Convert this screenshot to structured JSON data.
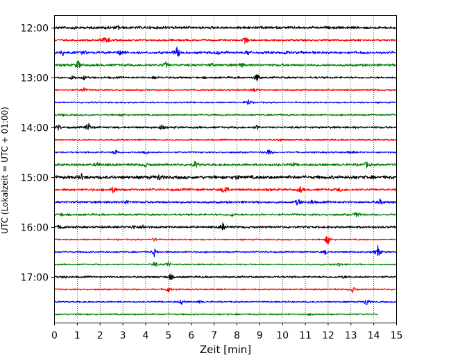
{
  "chart_data": {
    "type": "line",
    "title": "",
    "xlabel": "Zeit  [min]",
    "ylabel": "UTC (Lokalzeit = UTC + 01:00)",
    "xlim": [
      0,
      15
    ],
    "x_ticks": [
      0,
      1,
      2,
      3,
      4,
      5,
      6,
      7,
      8,
      9,
      10,
      11,
      12,
      13,
      14,
      15
    ],
    "y_ticks": [
      "12:00",
      "13:00",
      "14:00",
      "15:00",
      "16:00",
      "17:00"
    ],
    "grid": "vertical-dotted",
    "trace_colors": [
      "#000000",
      "#ff0000",
      "#0000ff",
      "#008000"
    ],
    "traces": [
      {
        "start": "12:00",
        "color": "#000000",
        "noise": 1.6,
        "end_min": 15,
        "events": [
          [
            2.8,
            2.5
          ],
          [
            2.3,
            1.5
          ],
          [
            0.8,
            1.2
          ]
        ]
      },
      {
        "start": "12:15",
        "color": "#ff0000",
        "noise": 1.2,
        "end_min": 15,
        "events": [
          [
            8.4,
            6
          ],
          [
            2.4,
            3
          ],
          [
            2.2,
            3
          ],
          [
            2.0,
            1.5
          ]
        ]
      },
      {
        "start": "12:30",
        "color": "#0000ff",
        "noise": 1.5,
        "end_min": 15,
        "events": [
          [
            5.4,
            9
          ],
          [
            0.4,
            4
          ],
          [
            1.3,
            4
          ],
          [
            2.9,
            4
          ],
          [
            7.2,
            2
          ],
          [
            8.5,
            3
          ],
          [
            10.2,
            2
          ]
        ]
      },
      {
        "start": "12:45",
        "color": "#008000",
        "noise": 1.5,
        "end_min": 15,
        "events": [
          [
            1.05,
            7
          ],
          [
            4.9,
            4
          ],
          [
            8.2,
            3
          ],
          [
            6.9,
            2
          ]
        ]
      },
      {
        "start": "13:00",
        "color": "#000000",
        "noise": 1.2,
        "end_min": 15,
        "events": [
          [
            8.9,
            6
          ],
          [
            0.8,
            3
          ],
          [
            1.3,
            3
          ],
          [
            4.4,
            2
          ]
        ]
      },
      {
        "start": "13:15",
        "color": "#ff0000",
        "noise": 0.9,
        "end_min": 15,
        "events": [
          [
            1.3,
            4
          ],
          [
            8.8,
            3
          ]
        ]
      },
      {
        "start": "13:30",
        "color": "#0000ff",
        "noise": 0.9,
        "end_min": 15,
        "events": [
          [
            8.5,
            5
          ]
        ]
      },
      {
        "start": "13:45",
        "color": "#008000",
        "noise": 1.0,
        "end_min": 15,
        "events": [
          [
            3.0,
            2
          ],
          [
            0.4,
            1.5
          ]
        ]
      },
      {
        "start": "14:00",
        "color": "#000000",
        "noise": 1.2,
        "end_min": 15,
        "events": [
          [
            1.5,
            7
          ],
          [
            0.2,
            4
          ],
          [
            4.7,
            3
          ],
          [
            8.9,
            3
          ]
        ]
      },
      {
        "start": "14:15",
        "color": "#ff0000",
        "noise": 0.9,
        "end_min": 15,
        "events": [
          [
            9.9,
            2
          ]
        ]
      },
      {
        "start": "14:30",
        "color": "#0000ff",
        "noise": 1.0,
        "end_min": 15,
        "events": [
          [
            2.7,
            4
          ],
          [
            4.0,
            4
          ],
          [
            9.4,
            5
          ],
          [
            13.0,
            2
          ]
        ]
      },
      {
        "start": "14:45",
        "color": "#008000",
        "noise": 1.5,
        "end_min": 15,
        "events": [
          [
            6.2,
            5
          ],
          [
            1.9,
            4
          ],
          [
            13.7,
            4
          ],
          [
            4.0,
            3
          ],
          [
            10.5,
            2
          ]
        ]
      },
      {
        "start": "15:00",
        "color": "#000000",
        "noise": 2.0,
        "end_min": 15,
        "events": [
          [
            4.6,
            4
          ],
          [
            8.0,
            3
          ],
          [
            1.2,
            3
          ]
        ]
      },
      {
        "start": "15:15",
        "color": "#ff0000",
        "noise": 1.5,
        "end_min": 15,
        "events": [
          [
            7.5,
            9
          ],
          [
            2.6,
            5
          ],
          [
            10.8,
            4
          ],
          [
            12.5,
            2
          ]
        ]
      },
      {
        "start": "15:30",
        "color": "#0000ff",
        "noise": 1.3,
        "end_min": 15,
        "events": [
          [
            10.7,
            6
          ],
          [
            3.2,
            4
          ],
          [
            14.3,
            4
          ],
          [
            11.3,
            3
          ]
        ]
      },
      {
        "start": "15:45",
        "color": "#008000",
        "noise": 1.2,
        "end_min": 15,
        "events": [
          [
            13.3,
            6
          ],
          [
            7.8,
            3
          ],
          [
            0.3,
            2
          ]
        ]
      },
      {
        "start": "16:00",
        "color": "#000000",
        "noise": 1.3,
        "end_min": 15,
        "events": [
          [
            7.4,
            6
          ],
          [
            0.3,
            4
          ],
          [
            3.5,
            3
          ],
          [
            3.9,
            3
          ]
        ]
      },
      {
        "start": "16:15",
        "color": "#ff0000",
        "noise": 0.9,
        "end_min": 15,
        "events": [
          [
            12.0,
            9
          ],
          [
            4.4,
            3
          ]
        ]
      },
      {
        "start": "16:30",
        "color": "#0000ff",
        "noise": 0.9,
        "end_min": 15,
        "events": [
          [
            14.2,
            10
          ],
          [
            4.4,
            6
          ],
          [
            11.9,
            4
          ]
        ]
      },
      {
        "start": "16:45",
        "color": "#008000",
        "noise": 0.9,
        "end_min": 15,
        "events": [
          [
            4.4,
            5
          ],
          [
            5.0,
            4
          ],
          [
            12.5,
            3
          ]
        ]
      },
      {
        "start": "17:00",
        "color": "#000000",
        "noise": 1.1,
        "end_min": 15,
        "events": [
          [
            5.1,
            5
          ],
          [
            0.5,
            2
          ],
          [
            12.7,
            2
          ]
        ]
      },
      {
        "start": "17:15",
        "color": "#ff0000",
        "noise": 0.9,
        "end_min": 15,
        "events": [
          [
            5.0,
            5
          ],
          [
            13.1,
            4
          ]
        ]
      },
      {
        "start": "17:30",
        "color": "#0000ff",
        "noise": 0.9,
        "end_min": 15,
        "events": [
          [
            5.6,
            4
          ],
          [
            13.7,
            6
          ],
          [
            6.4,
            2
          ]
        ]
      },
      {
        "start": "17:45",
        "color": "#008000",
        "noise": 0.9,
        "end_min": 14.2,
        "events": [
          [
            11.3,
            2
          ]
        ]
      }
    ]
  }
}
